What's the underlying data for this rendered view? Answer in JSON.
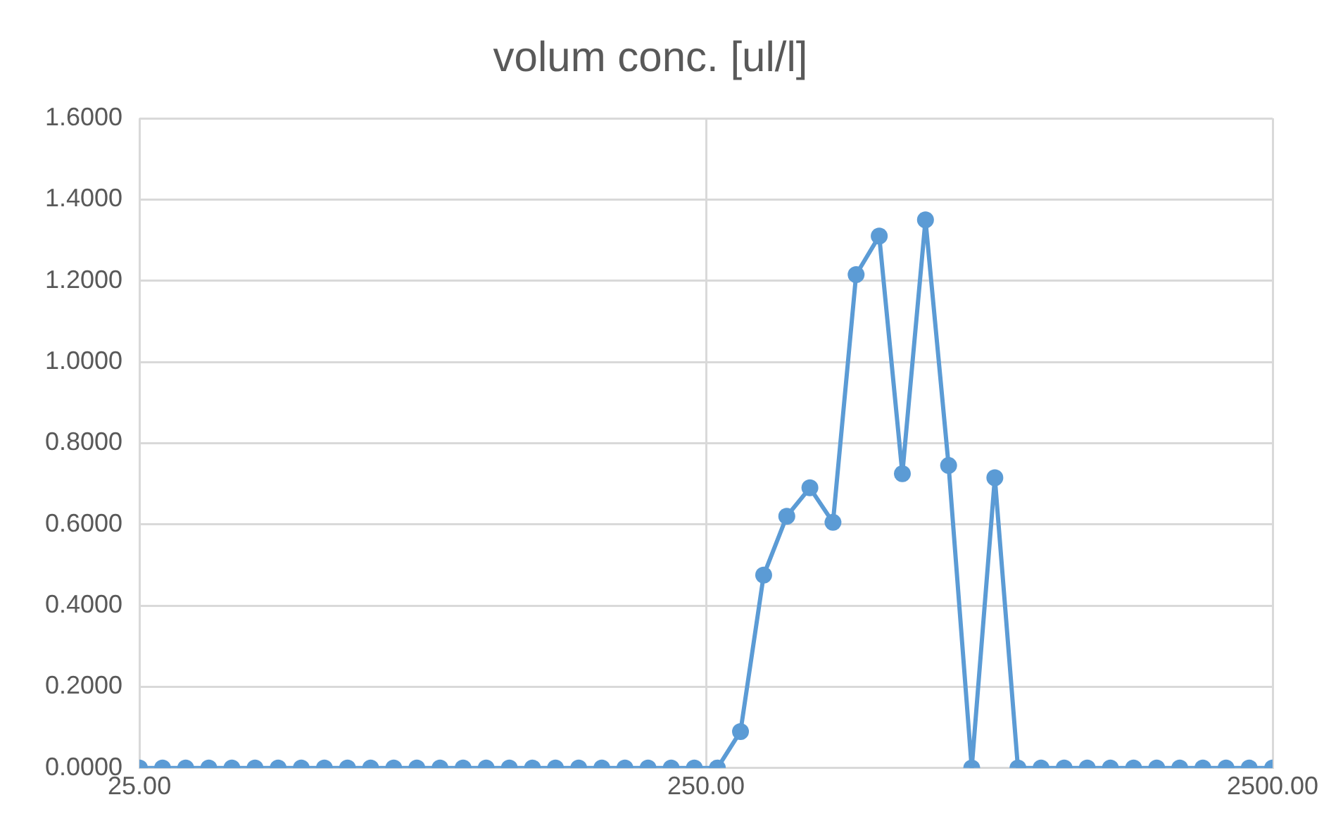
{
  "chart_data": {
    "type": "line",
    "title": "volum conc. [ul/l]",
    "x": [
      25,
      27.46,
      30.17,
      33.14,
      36.4,
      39.99,
      43.93,
      48.26,
      53.01,
      58.23,
      63.97,
      70.27,
      77.19,
      84.8,
      93.15,
      102.3,
      112.4,
      123.5,
      135.6,
      149,
      163.7,
      179.8,
      197.5,
      217,
      238.4,
      261.8,
      287.6,
      316,
      347.1,
      381.3,
      418.8,
      460.1,
      505.4,
      555.2,
      609.9,
      670,
      736,
      808.5,
      888.1,
      975.6,
      1071.7,
      1177,
      1293,
      1421,
      1561,
      1714,
      1883,
      2069,
      2273,
      2500
    ],
    "series": [
      {
        "color": "#5b9bd5",
        "values": [
          0,
          0,
          0,
          0,
          0,
          0,
          0,
          0,
          0,
          0,
          0,
          0,
          0,
          0,
          0,
          0,
          0,
          0,
          0,
          0,
          0,
          0,
          0,
          0,
          0,
          0,
          0.09,
          0.475,
          0.62,
          0.69,
          0.605,
          1.215,
          1.31,
          0.725,
          1.35,
          0.745,
          0,
          0.715,
          0,
          0,
          0,
          0,
          0,
          0,
          0,
          0,
          0,
          0,
          0,
          0
        ]
      }
    ],
    "log": "x",
    "xlim": [
      25,
      2500
    ],
    "xticks": [
      {
        "value": 25,
        "label": "25.00"
      },
      {
        "value": 250,
        "label": "250.00"
      },
      {
        "value": 2500,
        "label": "2500.00"
      }
    ],
    "ylim": [
      0,
      1.6
    ],
    "yticks": [
      {
        "value": 0,
        "label": "0.0000"
      },
      {
        "value": 0.2,
        "label": "0.2000"
      },
      {
        "value": 0.4,
        "label": "0.4000"
      },
      {
        "value": 0.6,
        "label": "0.6000"
      },
      {
        "value": 0.8,
        "label": "0.8000"
      },
      {
        "value": 1,
        "label": "1.0000"
      },
      {
        "value": 1.2,
        "label": "1.2000"
      },
      {
        "value": 1.4,
        "label": "1.4000"
      },
      {
        "value": 1.6,
        "label": "1.6000"
      }
    ],
    "grid": true,
    "legend": false,
    "marker": "circle",
    "line_style": "solid"
  }
}
